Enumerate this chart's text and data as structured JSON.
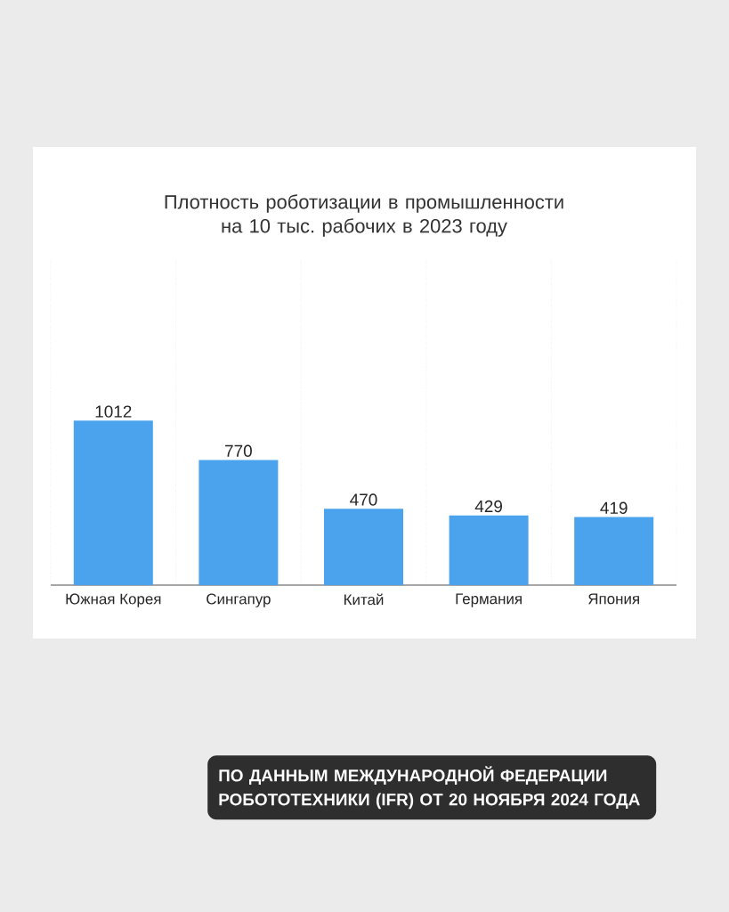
{
  "chart_data": {
    "type": "bar",
    "title": "Плотность роботизации в промышленности на 10 тыс. рабочих в 2023 году",
    "categories": [
      "Южная Корея",
      "Сингапур",
      "Китай",
      "Германия",
      "Япония"
    ],
    "values": [
      1012,
      770,
      470,
      429,
      419
    ],
    "color": "#4ba3ee",
    "data_labels": true,
    "ylim": [
      0,
      2000
    ],
    "tick_labels": "x",
    "grid": true,
    "annotations": [
      "ПО ДАННЫМ МЕЖДУНАРОДНОЙ ФЕДЕРАЦИИ РОБОТОТЕХНИКИ (IFR) ОТ 20 НОЯБРЯ 2024 ГОДА"
    ]
  }
}
